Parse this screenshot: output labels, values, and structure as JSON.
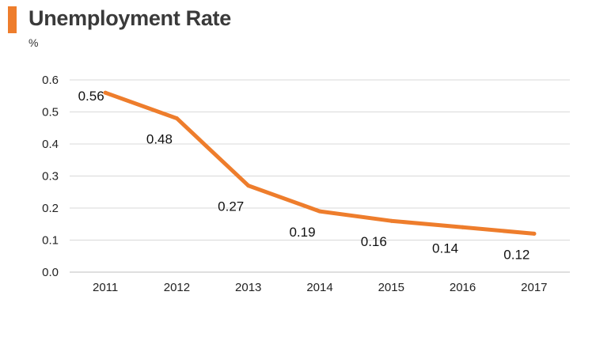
{
  "chart_data": {
    "type": "line",
    "title": "Unemployment Rate",
    "unit_label": "%",
    "categories": [
      "2011",
      "2012",
      "2013",
      "2014",
      "2015",
      "2016",
      "2017"
    ],
    "series": [
      {
        "values": [
          0.56,
          0.48,
          0.27,
          0.19,
          0.16,
          0.14,
          0.12
        ]
      }
    ],
    "data_labels": [
      "0.56",
      "0.48",
      "0.27",
      "0.19",
      "0.16",
      "0.14",
      "0.12"
    ],
    "ylim": [
      0,
      0.6
    ],
    "yticks": [
      "0.0",
      "0.1",
      "0.2",
      "0.3",
      "0.4",
      "0.5",
      "0.6"
    ],
    "grid": true,
    "legend": "none",
    "colors": {
      "line": "#ee7d2c",
      "accent": "#ee7d2c",
      "grid": "#d9d9d9"
    }
  }
}
